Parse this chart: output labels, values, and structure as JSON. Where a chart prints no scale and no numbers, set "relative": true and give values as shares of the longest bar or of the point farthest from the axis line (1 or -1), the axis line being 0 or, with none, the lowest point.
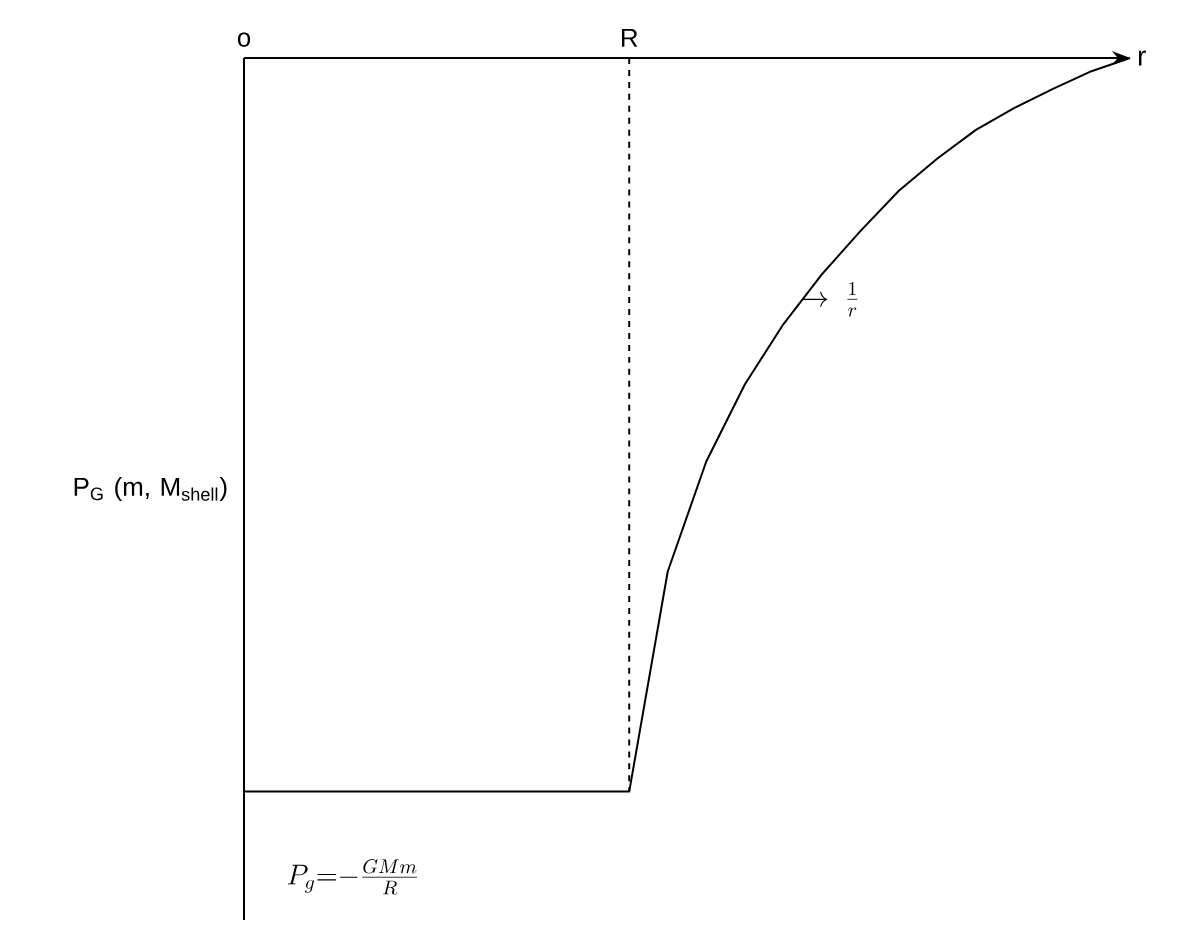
{
  "chart_data": {
    "type": "line",
    "relative": true,
    "xlabel": "r",
    "ylabel": "P$_{G}$ (m, M$_{shell}$)",
    "categories": [
      "o",
      null,
      null,
      null,
      null,
      null,
      null,
      null,
      null,
      null,
      "R",
      null,
      null,
      null,
      null,
      null,
      null,
      null,
      null,
      null,
      null,
      null,
      null,
      null
    ],
    "annotations": [
      "\\rightarrow\\;\\frac{1}{r}",
      "P_g{=}{-}\\frac{GMm}{R}"
    ],
    "ref_lines": [
      {
        "axis": "x",
        "value": "R",
        "line_style": "dashed",
        "color": "#000000"
      }
    ],
    "series": [
      {
        "color": "#000000",
        "line_style": "solid",
        "values": [
          -1,
          -1,
          -1,
          -1,
          -1,
          -1,
          -1,
          -1,
          -1,
          -1,
          -1,
          -0.7,
          -0.55,
          -0.445,
          -0.363,
          -0.295,
          -0.236,
          -0.181,
          -0.137,
          -0.098,
          -0.068,
          -0.042,
          -0.018,
          0
        ]
      }
    ]
  }
}
